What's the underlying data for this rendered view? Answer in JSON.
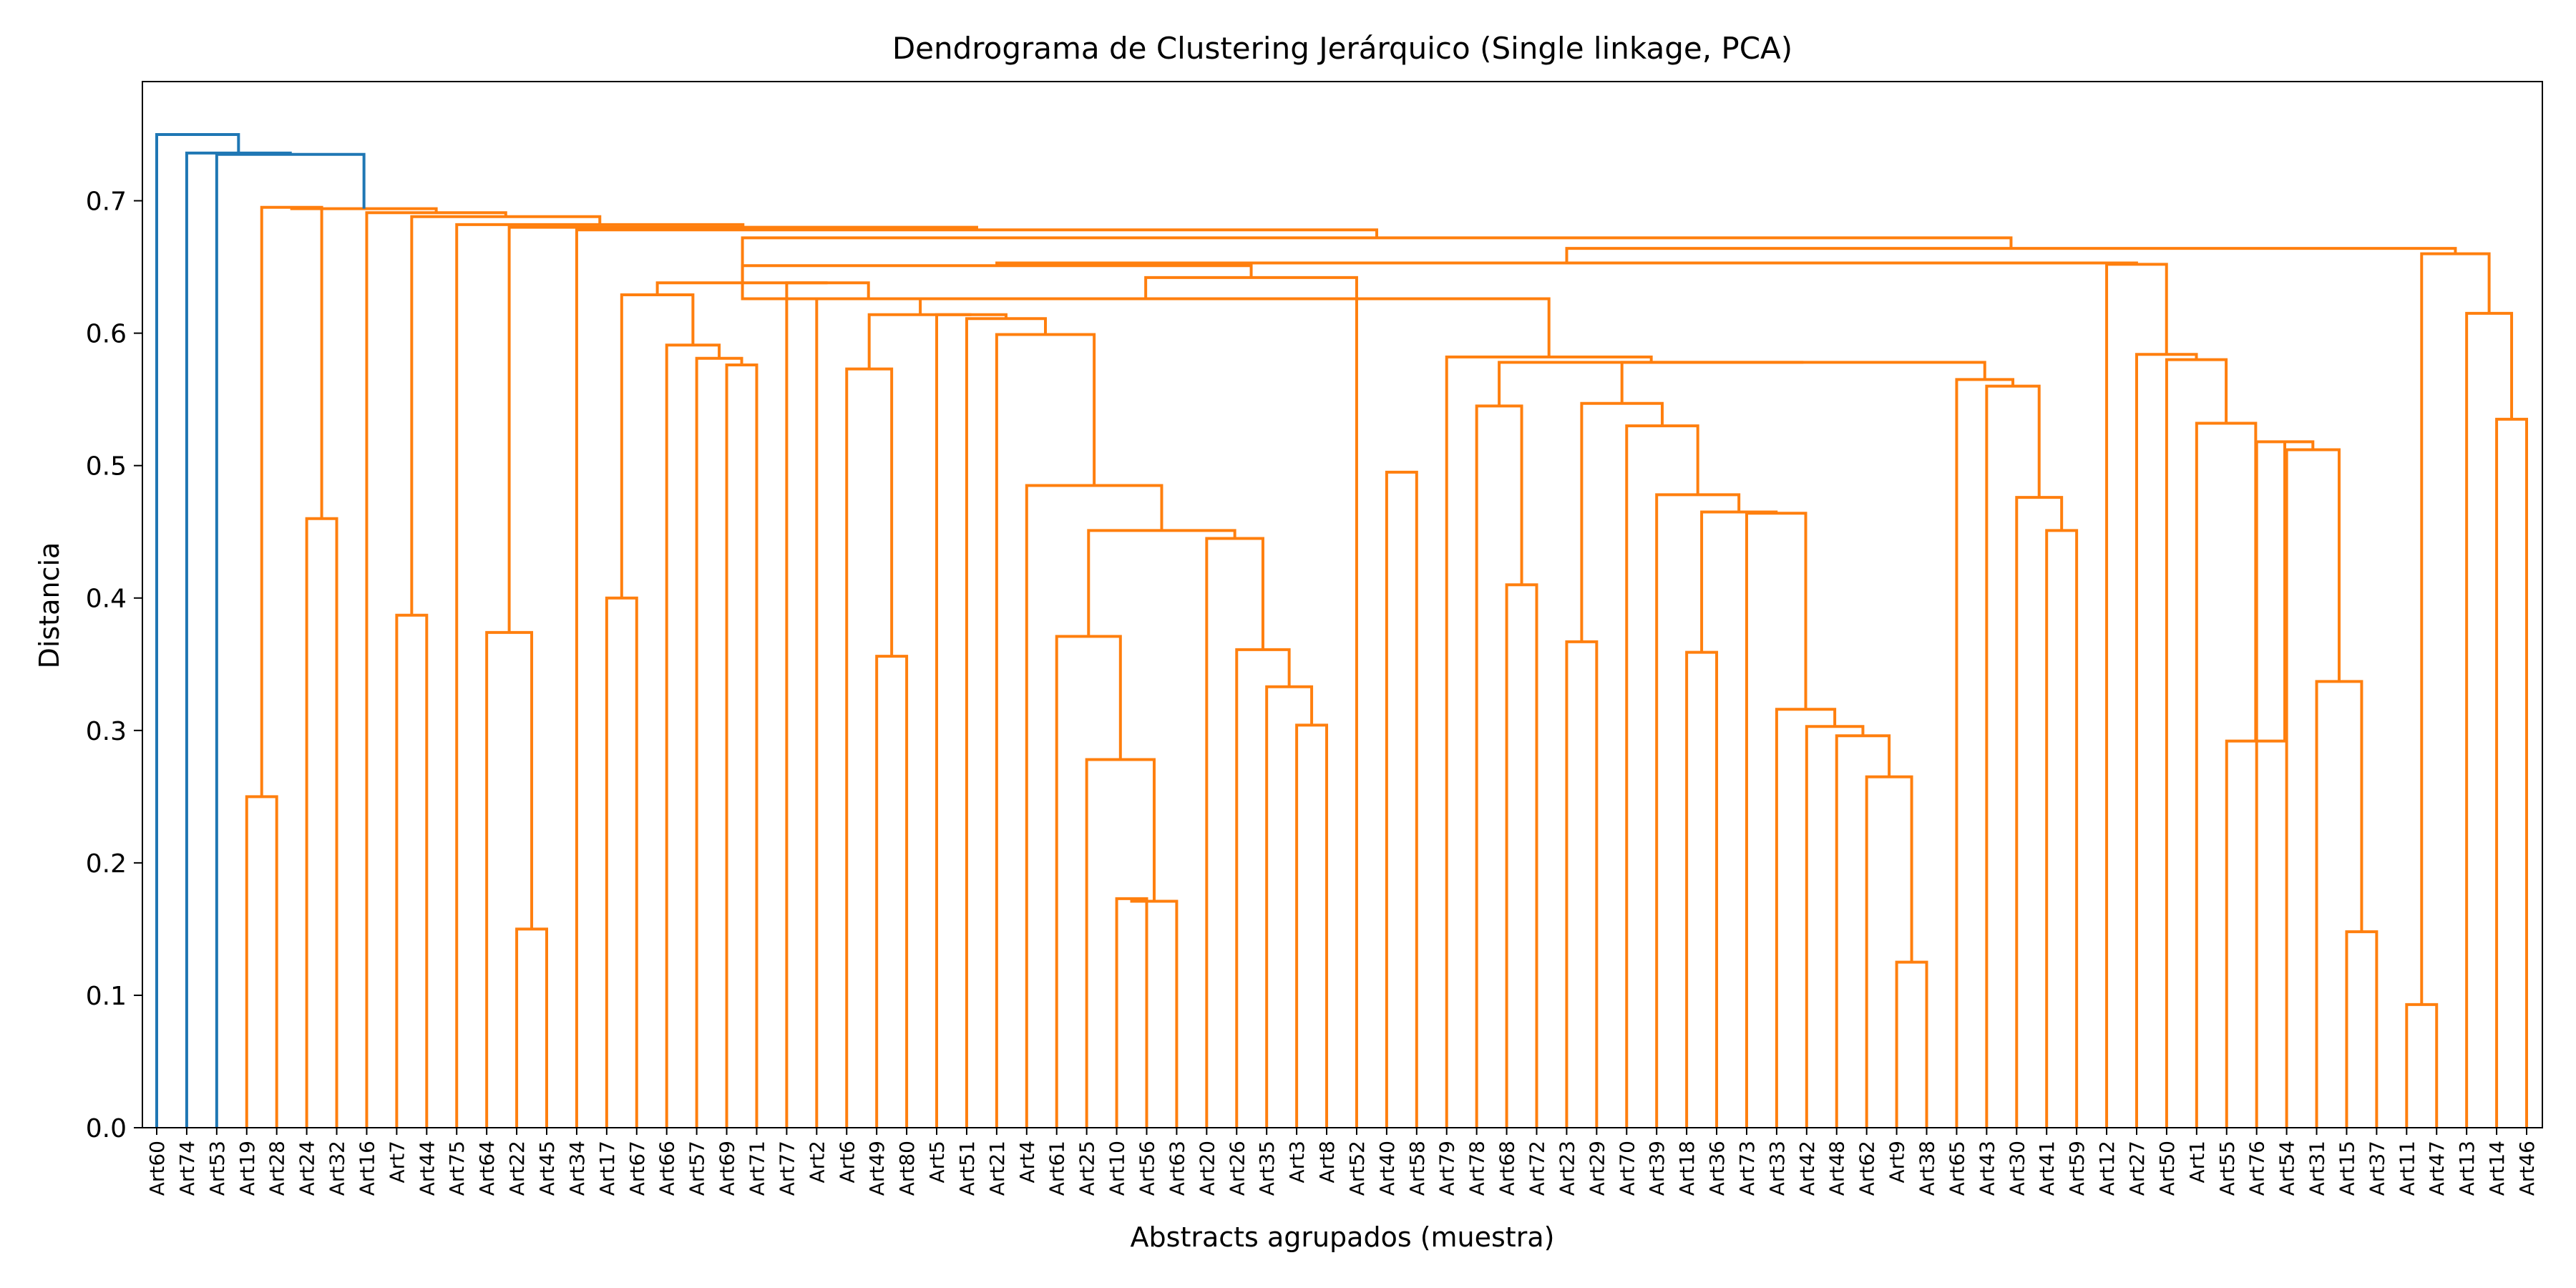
{
  "chart_data": {
    "type": "dendrogram",
    "title": "Dendrograma de Clustering Jerárquico (Single linkage, PCA)",
    "xlabel": "Abstracts agrupados (muestra)",
    "ylabel": "Distancia",
    "ylim": [
      0,
      0.79
    ],
    "yticks": [
      0.0,
      0.1,
      0.2,
      0.3,
      0.4,
      0.5,
      0.6,
      0.7
    ],
    "ytick_labels": [
      "0.0",
      "0.1",
      "0.2",
      "0.3",
      "0.4",
      "0.5",
      "0.6",
      "0.7"
    ],
    "colors": {
      "above_threshold": "#1f77b4",
      "cluster": "#ff7f0e"
    },
    "leaves": [
      "Art60",
      "Art74",
      "Art53",
      "Art19",
      "Art28",
      "Art24",
      "Art32",
      "Art16",
      "Art7",
      "Art44",
      "Art75",
      "Art64",
      "Art22",
      "Art45",
      "Art34",
      "Art17",
      "Art67",
      "Art66",
      "Art57",
      "Art69",
      "Art71",
      "Art77",
      "Art2",
      "Art6",
      "Art49",
      "Art80",
      "Art5",
      "Art51",
      "Art21",
      "Art4",
      "Art61",
      "Art25",
      "Art10",
      "Art56",
      "Art63",
      "Art20",
      "Art26",
      "Art35",
      "Art3",
      "Art8",
      "Art52",
      "Art40",
      "Art58",
      "Art79",
      "Art78",
      "Art68",
      "Art72",
      "Art23",
      "Art29",
      "Art70",
      "Art39",
      "Art18",
      "Art36",
      "Art73",
      "Art33",
      "Art42",
      "Art48",
      "Art62",
      "Art9",
      "Art38",
      "Art65",
      "Art43",
      "Art30",
      "Art41",
      "Art59",
      "Art12",
      "Art27",
      "Art50",
      "Art1",
      "Art55",
      "Art76",
      "Art54",
      "Art31",
      "Art15",
      "Art37",
      "Art11",
      "Art47",
      "Art13",
      "Art14",
      "Art46"
    ],
    "merges": [
      {
        "a": "Art28",
        "b": "Art19",
        "h": 0.25
      },
      {
        "a": "Art24",
        "b": "Art32",
        "h": 0.46
      },
      {
        "a": "c1",
        "b": "c2",
        "h": 0.695
      },
      {
        "a": "Art7",
        "b": "Art44",
        "h": 0.387
      },
      {
        "a": "Art22",
        "b": "Art45",
        "h": 0.15
      },
      {
        "a": "Art64",
        "b": "c5",
        "h": 0.374
      },
      {
        "a": "Art17",
        "b": "Art67",
        "h": 0.4
      },
      {
        "a": "Art69",
        "b": "Art71",
        "h": 0.576
      },
      {
        "a": "Art57",
        "b": "c8",
        "h": 0.581
      },
      {
        "a": "Art66",
        "b": "c9",
        "h": 0.591
      },
      {
        "a": "c7",
        "b": "c10",
        "h": 0.629
      },
      {
        "a": "Art49",
        "b": "Art80",
        "h": 0.356
      },
      {
        "a": "Art6",
        "b": "c12",
        "h": 0.573
      },
      {
        "a": "Art10",
        "b": "Art56",
        "h": 0.173
      },
      {
        "a": "c14",
        "b": "Art63",
        "h": 0.171
      },
      {
        "a": "Art25",
        "b": "c15",
        "h": 0.278
      },
      {
        "a": "Art61",
        "b": "c16",
        "h": 0.371
      },
      {
        "a": "Art3",
        "b": "Art8",
        "h": 0.304
      },
      {
        "a": "Art35",
        "b": "c18",
        "h": 0.333
      },
      {
        "a": "Art26",
        "b": "c19",
        "h": 0.361
      },
      {
        "a": "Art20",
        "b": "c20",
        "h": 0.445
      },
      {
        "a": "c17",
        "b": "c21",
        "h": 0.451
      },
      {
        "a": "Art4",
        "b": "c22",
        "h": 0.485
      },
      {
        "a": "Art21",
        "b": "c23",
        "h": 0.599
      },
      {
        "a": "Art51",
        "b": "c24",
        "h": 0.611
      },
      {
        "a": "Art5",
        "b": "c25",
        "h": 0.614
      },
      {
        "a": "c13",
        "b": "c26",
        "h": 0.614
      },
      {
        "a": "Art2",
        "b": "c27",
        "h": 0.626
      },
      {
        "a": "Art77",
        "b": "c28",
        "h": 0.638
      },
      {
        "a": "c11",
        "b": "c29",
        "h": 0.638
      },
      {
        "a": "Art40",
        "b": "Art58",
        "h": 0.495
      },
      {
        "a": "Art68",
        "b": "Art72",
        "h": 0.41
      },
      {
        "a": "Art78",
        "b": "c32",
        "h": 0.545
      },
      {
        "a": "Art23",
        "b": "Art29",
        "h": 0.367
      },
      {
        "a": "Art18",
        "b": "Art36",
        "h": 0.359
      },
      {
        "a": "Art38",
        "b": "Art9",
        "h": 0.125
      },
      {
        "a": "Art62",
        "b": "c36",
        "h": 0.265
      },
      {
        "a": "Art48",
        "b": "c37",
        "h": 0.296
      },
      {
        "a": "Art42",
        "b": "c38",
        "h": 0.303
      },
      {
        "a": "Art33",
        "b": "c39",
        "h": 0.316
      },
      {
        "a": "Art73",
        "b": "c40",
        "h": 0.464
      },
      {
        "a": "c35",
        "b": "c41",
        "h": 0.465
      },
      {
        "a": "Art39",
        "b": "c42",
        "h": 0.478
      },
      {
        "a": "Art70",
        "b": "c43",
        "h": 0.53
      },
      {
        "a": "c34",
        "b": "c44",
        "h": 0.547
      },
      {
        "a": "Art41",
        "b": "Art59",
        "h": 0.451
      },
      {
        "a": "Art30",
        "b": "c46",
        "h": 0.476
      },
      {
        "a": "Art43",
        "b": "c47",
        "h": 0.56
      },
      {
        "a": "Art65",
        "b": "c48",
        "h": 0.565
      },
      {
        "a": "c45",
        "b": "c49",
        "h": 0.578
      },
      {
        "a": "c33",
        "b": "c50",
        "h": 0.578
      },
      {
        "a": "Art79",
        "b": "c51",
        "h": 0.582
      },
      {
        "a": "c52",
        "b": "c30",
        "h": 0.626
      },
      {
        "a": "Art52",
        "b": "c53",
        "h": 0.642
      },
      {
        "a": "c30",
        "b": "c54",
        "h": 0.651
      },
      {
        "a": "Art15",
        "b": "Art37",
        "h": 0.148
      },
      {
        "a": "Art31",
        "b": "c56",
        "h": 0.337
      },
      {
        "a": "Art54",
        "b": "c57",
        "h": 0.512
      },
      {
        "a": "Art76",
        "b": "c58",
        "h": 0.518
      },
      {
        "a": "Art55",
        "b": "c59",
        "h": 0.292
      },
      {
        "a": "Art1",
        "b": "c60",
        "h": 0.532
      },
      {
        "a": "Art50",
        "b": "c61",
        "h": 0.58
      },
      {
        "a": "Art27",
        "b": "c62",
        "h": 0.584
      },
      {
        "a": "Art12",
        "b": "c63",
        "h": 0.652
      },
      {
        "a": "c55",
        "b": "c64",
        "h": 0.653
      },
      {
        "a": "Art11",
        "b": "Art47",
        "h": 0.093
      },
      {
        "a": "Art14",
        "b": "Art46",
        "h": 0.535
      },
      {
        "a": "Art13",
        "b": "c67",
        "h": 0.615
      },
      {
        "a": "c66",
        "b": "c68",
        "h": 0.66
      },
      {
        "a": "c65",
        "b": "c69",
        "h": 0.664
      },
      {
        "a": "c30",
        "b": "c70",
        "h": 0.672
      },
      {
        "a": "Art34",
        "b": "c71",
        "h": 0.678
      },
      {
        "a": "c6",
        "b": "c72",
        "h": 0.68
      },
      {
        "a": "Art75",
        "b": "c73",
        "h": 0.682
      },
      {
        "a": "c4",
        "b": "c74",
        "h": 0.688
      },
      {
        "a": "Art16",
        "b": "c75",
        "h": 0.691
      },
      {
        "a": "c3",
        "b": "c76",
        "h": 0.694
      },
      {
        "a": "Art53",
        "b": "c77",
        "h": 0.735
      },
      {
        "a": "Art74",
        "b": "c78",
        "h": 0.736
      },
      {
        "a": "Art60",
        "b": "c79",
        "h": 0.75
      }
    ],
    "blue_merges": [
      "c78",
      "c79",
      "c80"
    ]
  }
}
